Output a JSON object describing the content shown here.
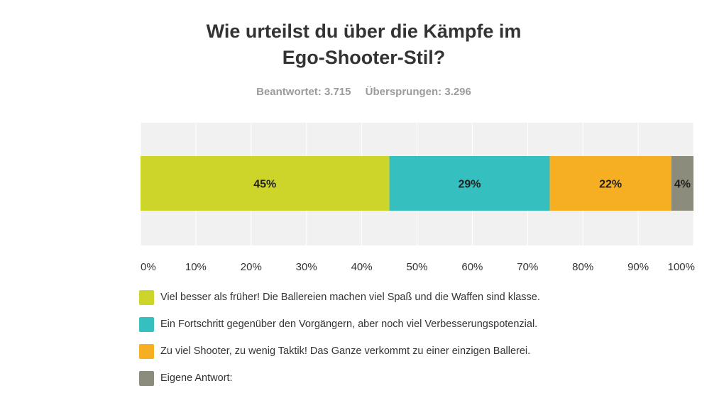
{
  "title_line1": "Wie urteilst du über die Kämpfe im",
  "title_line2": "Ego-Shooter-Stil?",
  "stats": {
    "answered": "Beantwortet: 3.715",
    "skipped": "Übersprungen: 3.296"
  },
  "chart_data": {
    "type": "bar",
    "orientation": "horizontal-stacked",
    "xlim": [
      0,
      100
    ],
    "x_ticks": [
      "0%",
      "10%",
      "20%",
      "30%",
      "40%",
      "50%",
      "60%",
      "70%",
      "80%",
      "90%",
      "100%"
    ],
    "series": [
      {
        "name": "Viel besser als früher! Die Ballereien machen viel Spaß und die Waffen sind klasse.",
        "value": 45,
        "label": "45%",
        "color": "#cdd52a"
      },
      {
        "name": "Ein Fortschritt gegenüber den Vorgängern, aber noch viel Verbesserungspotenzial.",
        "value": 29,
        "label": "29%",
        "color": "#35bfbf"
      },
      {
        "name": "Zu viel Shooter, zu wenig Taktik! Das Ganze verkommt zu einer einzigen Ballerei.",
        "value": 22,
        "label": "22%",
        "color": "#f6ae22"
      },
      {
        "name": "Eigene Antwort:",
        "value": 4,
        "label": "4%",
        "color": "#8c8c7c"
      }
    ],
    "grid": true,
    "legend_position": "bottom"
  }
}
